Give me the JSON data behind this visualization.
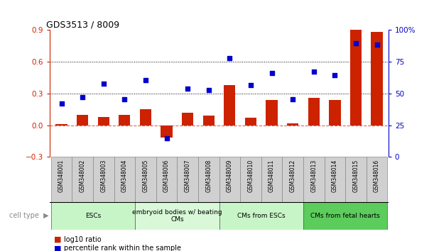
{
  "title": "GDS3513 / 8009",
  "samples": [
    "GSM348001",
    "GSM348002",
    "GSM348003",
    "GSM348004",
    "GSM348005",
    "GSM348006",
    "GSM348007",
    "GSM348008",
    "GSM348009",
    "GSM348010",
    "GSM348011",
    "GSM348012",
    "GSM348013",
    "GSM348014",
    "GSM348015",
    "GSM348016"
  ],
  "log10_ratio": [
    0.01,
    0.1,
    0.08,
    0.1,
    0.15,
    -0.12,
    0.12,
    0.09,
    0.38,
    0.07,
    0.24,
    0.02,
    0.26,
    0.24,
    0.9,
    0.88
  ],
  "percentile_rank": [
    42,
    47,
    57.5,
    45.5,
    60.5,
    14.5,
    54,
    52.5,
    78,
    56.5,
    66,
    45.5,
    67.5,
    64.5,
    89.5,
    88.5
  ],
  "cell_type_groups": [
    {
      "label": "ESCs",
      "start": 0,
      "end": 3,
      "color": "#c8f5c8"
    },
    {
      "label": "embryoid bodies w/ beating\nCMs",
      "start": 4,
      "end": 7,
      "color": "#d8f8d8"
    },
    {
      "label": "CMs from ESCs",
      "start": 8,
      "end": 11,
      "color": "#c8f5c8"
    },
    {
      "label": "CMs from fetal hearts",
      "start": 12,
      "end": 15,
      "color": "#5ccc5c"
    }
  ],
  "bar_color": "#CC2200",
  "dot_color": "#0000CC",
  "ylim_left": [
    -0.3,
    0.9
  ],
  "ylim_right": [
    0,
    100
  ],
  "yticks_left": [
    -0.3,
    0.0,
    0.3,
    0.6,
    0.9
  ],
  "yticks_right": [
    0,
    25,
    50,
    75,
    100
  ],
  "hline_positions": [
    0.3,
    0.6
  ],
  "background_color": "#ffffff",
  "sample_box_color": "#d0d0d0",
  "cell_type_label": "cell type",
  "legend": [
    {
      "color": "#CC2200",
      "label": "log10 ratio"
    },
    {
      "color": "#0000CC",
      "label": "percentile rank within the sample"
    }
  ]
}
